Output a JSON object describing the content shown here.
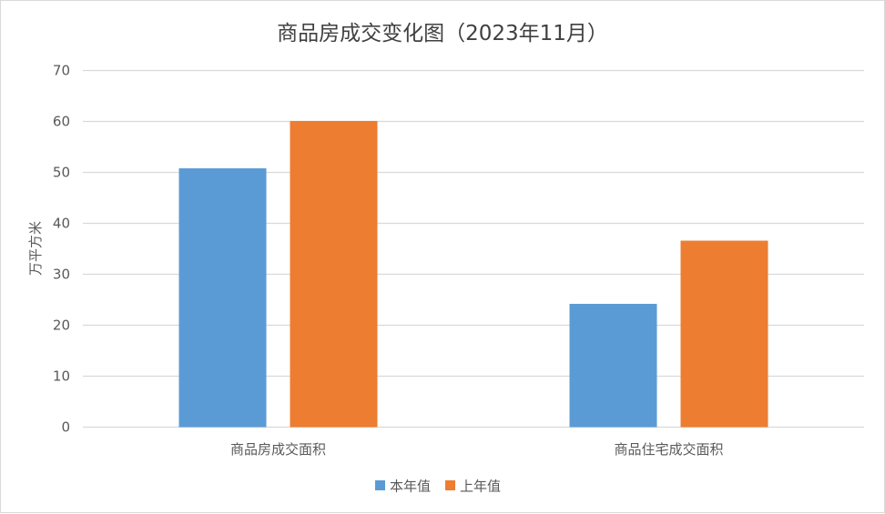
{
  "chart_data": {
    "type": "bar",
    "title": "商品房成交变化图（2023年11月）",
    "xlabel": "",
    "ylabel": "万平方米",
    "categories": [
      "商品房成交面积",
      "商品住宅成交面积"
    ],
    "series": [
      {
        "name": "本年值",
        "values": [
          50.8,
          24.2
        ],
        "color": "#5b9bd5"
      },
      {
        "name": "上年值",
        "values": [
          60.1,
          36.6
        ],
        "color": "#ed7d31"
      }
    ],
    "ylim": [
      0,
      70
    ],
    "yticks": [
      0,
      10,
      20,
      30,
      40,
      50,
      60,
      70
    ],
    "grid": true,
    "legend": "bottom"
  }
}
